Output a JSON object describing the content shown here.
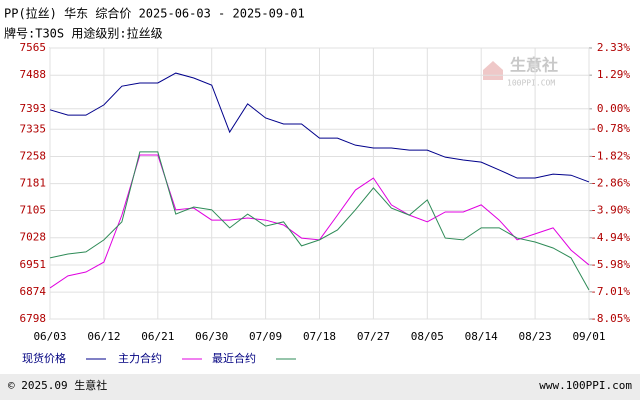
{
  "chart_data": {
    "type": "line",
    "title": "PP(拉丝) 华东 综合价 2025-06-03 - 2025-09-01",
    "subtitle": "牌号:T30S 用途级别:拉丝级",
    "watermark": "生意社",
    "watermark_sub": "100PPI.COM",
    "footer_left": "© 2025.09 生意社",
    "footer_right": "www.100PPI.com",
    "categories": [
      "06/03",
      null,
      null,
      "06/12",
      null,
      null,
      "06/21",
      null,
      null,
      "06/30",
      null,
      null,
      "07/09",
      null,
      null,
      "07/18",
      null,
      null,
      "07/27",
      null,
      null,
      "08/05",
      null,
      null,
      "08/14",
      null,
      null,
      "08/23",
      null,
      null,
      "09/01"
    ],
    "series": [
      {
        "name": "现货价格",
        "color": "#00008b",
        "values": [
          7390,
          7375,
          7375,
          7404,
          7457,
          7466,
          7466,
          7494,
          7480,
          7460,
          7327,
          7407,
          7367,
          7350,
          7350,
          7310,
          7310,
          7290,
          7282,
          7282,
          7276,
          7276,
          7256,
          7248,
          7242,
          7220,
          7197,
          7197,
          7208,
          7205,
          7186
        ]
      },
      {
        "name": "主力合约",
        "color": "#e000e0",
        "values": [
          6886,
          6920,
          6931,
          6959,
          7092,
          7262,
          7262,
          7107,
          7112,
          7078,
          7078,
          7084,
          7078,
          7064,
          7027,
          7022,
          7092,
          7163,
          7197,
          7121,
          7092,
          7073,
          7101,
          7101,
          7121,
          7078,
          7022,
          7039,
          7056,
          6993,
          6951
        ]
      },
      {
        "name": "最近合约",
        "color": "#2e8b57",
        "values": [
          6971,
          6982,
          6988,
          7022,
          7073,
          7271,
          7271,
          7095,
          7115,
          7107,
          7056,
          7095,
          7061,
          7073,
          7005,
          7022,
          7050,
          7107,
          7169,
          7112,
          7092,
          7135,
          7027,
          7022,
          7056,
          7056,
          7027,
          7016,
          6999,
          6971,
          6880
        ]
      }
    ],
    "ylim": [
      6798,
      7565
    ],
    "yticks": [
      6798,
      6874,
      6951,
      7028,
      7105,
      7181,
      7258,
      7335,
      7393,
      7488,
      7565
    ],
    "y2lim": [
      -8.05,
      2.33
    ],
    "y2ticks": [
      {
        "value": -8.05,
        "label": "-8.05%"
      },
      {
        "value": -7.01,
        "label": "-7.01%"
      },
      {
        "value": -5.98,
        "label": "-5.98%"
      },
      {
        "value": -4.94,
        "label": "-4.94%"
      },
      {
        "value": -3.9,
        "label": "-3.90%"
      },
      {
        "value": -2.86,
        "label": "-2.86%"
      },
      {
        "value": -1.82,
        "label": "-1.82%"
      },
      {
        "value": -0.78,
        "label": "-0.78%"
      },
      {
        "value": 0.0,
        "label": "0.00%"
      },
      {
        "value": 1.29,
        "label": "1.29%"
      },
      {
        "value": 2.33,
        "label": "2.33%"
      }
    ],
    "grid": true
  }
}
